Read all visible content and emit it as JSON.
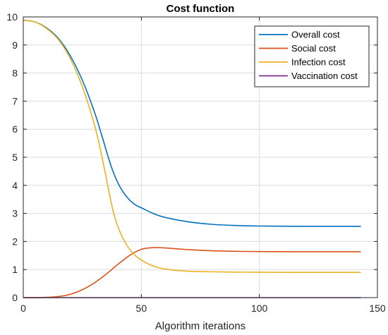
{
  "chart_data": {
    "type": "line",
    "title": "Cost function",
    "xlabel": "Algorithm iterations",
    "ylabel": "",
    "xlim": [
      0,
      150
    ],
    "ylim": [
      0,
      10
    ],
    "xticks": [
      0,
      50,
      100,
      150
    ],
    "yticks": [
      0,
      1,
      2,
      3,
      4,
      5,
      6,
      7,
      8,
      9,
      10
    ],
    "grid": true,
    "legend_position": "top-right",
    "series": [
      {
        "name": "Overall cost",
        "color": "#0072BD",
        "x": [
          0,
          5,
          10,
          15,
          20,
          25,
          30,
          33,
          36,
          38,
          40,
          42,
          44,
          46,
          48,
          50,
          55,
          60,
          70,
          80,
          90,
          100,
          110,
          120,
          130,
          143
        ],
        "y": [
          9.88,
          9.82,
          9.6,
          9.22,
          8.6,
          7.75,
          6.65,
          5.85,
          5.0,
          4.5,
          4.1,
          3.8,
          3.57,
          3.4,
          3.28,
          3.2,
          3.0,
          2.86,
          2.7,
          2.61,
          2.57,
          2.55,
          2.545,
          2.54,
          2.54,
          2.54
        ]
      },
      {
        "name": "Social cost",
        "color": "#D95319",
        "x": [
          0,
          5,
          10,
          15,
          20,
          25,
          30,
          35,
          40,
          45,
          50,
          55,
          60,
          70,
          80,
          90,
          100,
          120,
          143
        ],
        "y": [
          0,
          0,
          0.01,
          0.04,
          0.12,
          0.28,
          0.52,
          0.83,
          1.18,
          1.5,
          1.72,
          1.78,
          1.77,
          1.71,
          1.67,
          1.65,
          1.64,
          1.635,
          1.635
        ]
      },
      {
        "name": "Infection cost",
        "color": "#EDB120",
        "x": [
          0,
          5,
          10,
          15,
          20,
          25,
          30,
          33,
          36,
          38,
          40,
          42,
          44,
          46,
          48,
          50,
          53,
          56,
          60,
          65,
          70,
          80,
          90,
          100,
          120,
          143
        ],
        "y": [
          9.88,
          9.82,
          9.58,
          9.18,
          8.5,
          7.52,
          6.2,
          5.15,
          3.9,
          3.1,
          2.55,
          2.15,
          1.85,
          1.62,
          1.46,
          1.34,
          1.2,
          1.1,
          1.02,
          0.97,
          0.94,
          0.92,
          0.91,
          0.905,
          0.9,
          0.9
        ]
      },
      {
        "name": "Vaccination cost",
        "color": "#7E2F8E",
        "x": [
          0,
          143
        ],
        "y": [
          0,
          0
        ]
      }
    ]
  }
}
